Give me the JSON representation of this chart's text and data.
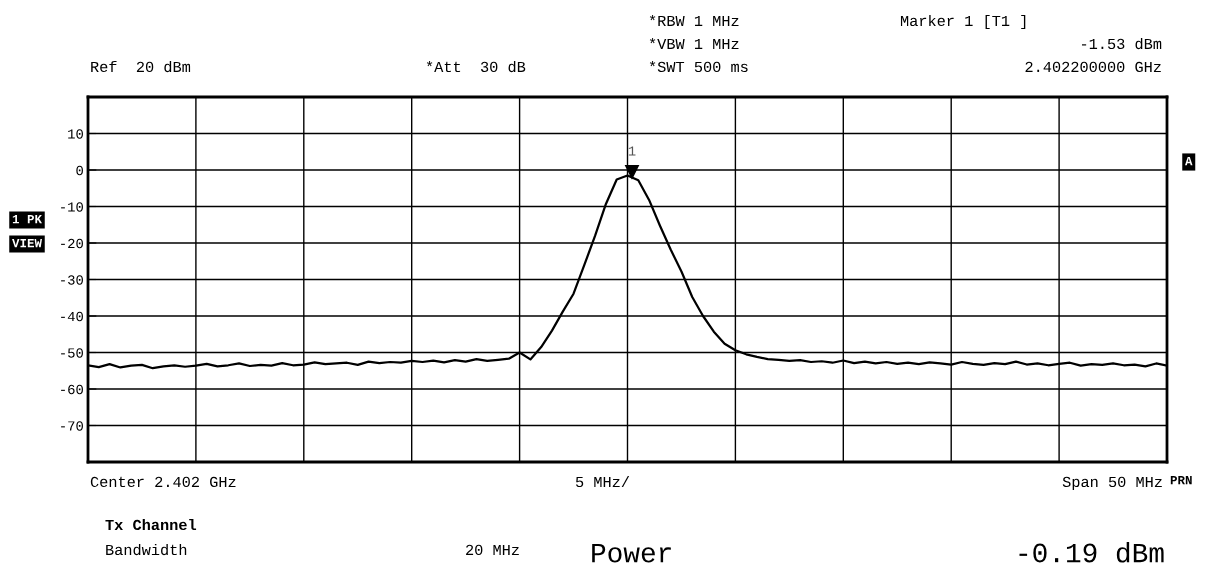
{
  "chart_data": {
    "type": "line",
    "categories": [
      null,
      null,
      null,
      null,
      null,
      null,
      null,
      null,
      null,
      null,
      null,
      null,
      null,
      null,
      null,
      null,
      null,
      null,
      null,
      null,
      null,
      null,
      null,
      null,
      null,
      null,
      null,
      null,
      null,
      null,
      null,
      null,
      null,
      null,
      null,
      null,
      null,
      null,
      null,
      null,
      null,
      null,
      null,
      null,
      null,
      null,
      null,
      null,
      null,
      null,
      null,
      null,
      null,
      null,
      null,
      null,
      null,
      null,
      null,
      null,
      null,
      null,
      null,
      null,
      null,
      null,
      null,
      null,
      null,
      null,
      null,
      null,
      null,
      null,
      null,
      null,
      null,
      null,
      null,
      null,
      null,
      null,
      null,
      null,
      null,
      null,
      null,
      null,
      null,
      null,
      null,
      null,
      null,
      null,
      null,
      null,
      null,
      null,
      null,
      null,
      null
    ],
    "series": [
      {
        "color": "#000000",
        "values": [
          -53.5,
          -54.0,
          -53.2,
          -54.1,
          -53.6,
          -53.4,
          -54.3,
          -53.8,
          -53.5,
          -53.9,
          -53.6,
          -53.1,
          -53.8,
          -53.5,
          -53.0,
          -53.7,
          -53.4,
          -53.6,
          -52.9,
          -53.5,
          -53.3,
          -52.7,
          -53.2,
          -53.0,
          -52.8,
          -53.4,
          -52.5,
          -52.9,
          -52.6,
          -52.8,
          -52.3,
          -52.6,
          -52.2,
          -52.7,
          -52.1,
          -52.5,
          -51.8,
          -52.3,
          -52.0,
          -51.7,
          -50.0,
          -51.9,
          -48.5,
          -44,
          -38.8,
          -33.9,
          -26,
          -18,
          -9.3,
          -2.6,
          -1.5,
          -2.8,
          -8.2,
          -15.2,
          -21.8,
          -27.8,
          -34.8,
          -40.0,
          -44.3,
          -47.6,
          -49.4,
          -50.5,
          -51.2,
          -51.8,
          -52.0,
          -52.3,
          -52.1,
          -52.6,
          -52.4,
          -52.8,
          -52.2,
          -52.9,
          -52.5,
          -53.0,
          -52.6,
          -53.1,
          -52.8,
          -53.2,
          -52.7,
          -53.0,
          -53.3,
          -52.6,
          -53.1,
          -53.4,
          -52.9,
          -53.2,
          -52.5,
          -53.3,
          -53.0,
          -53.5,
          -53.1,
          -52.8,
          -53.6,
          -53.2,
          -53.4,
          -53.0,
          -53.5,
          -53.3,
          -53.8,
          -53.0,
          -53.6
        ]
      }
    ],
    "ylim": [
      -80,
      20
    ],
    "yticks": [
      10,
      0,
      -10,
      -20,
      -30,
      -40,
      -50,
      -60,
      -70
    ],
    "grid": true,
    "line_style": "solid",
    "marker": "none",
    "annotations": [
      "1",
      "Ref  20 dBm",
      "*Att  30 dB",
      "*RBW 1 MHz",
      "*VBW 1 MHz",
      "*SWT 500 ms",
      "Marker 1 [T1 ]",
      "-1.53 dBm",
      "2.402200000 GHz",
      "1 PK",
      "VIEW",
      "A",
      "Center 2.402 GHz",
      "5 MHz/",
      "Span 50 MHz",
      "PRN",
      "Tx Channel",
      "Bandwidth",
      "20 MHz",
      "Power",
      "-0.19 dBm"
    ]
  }
}
